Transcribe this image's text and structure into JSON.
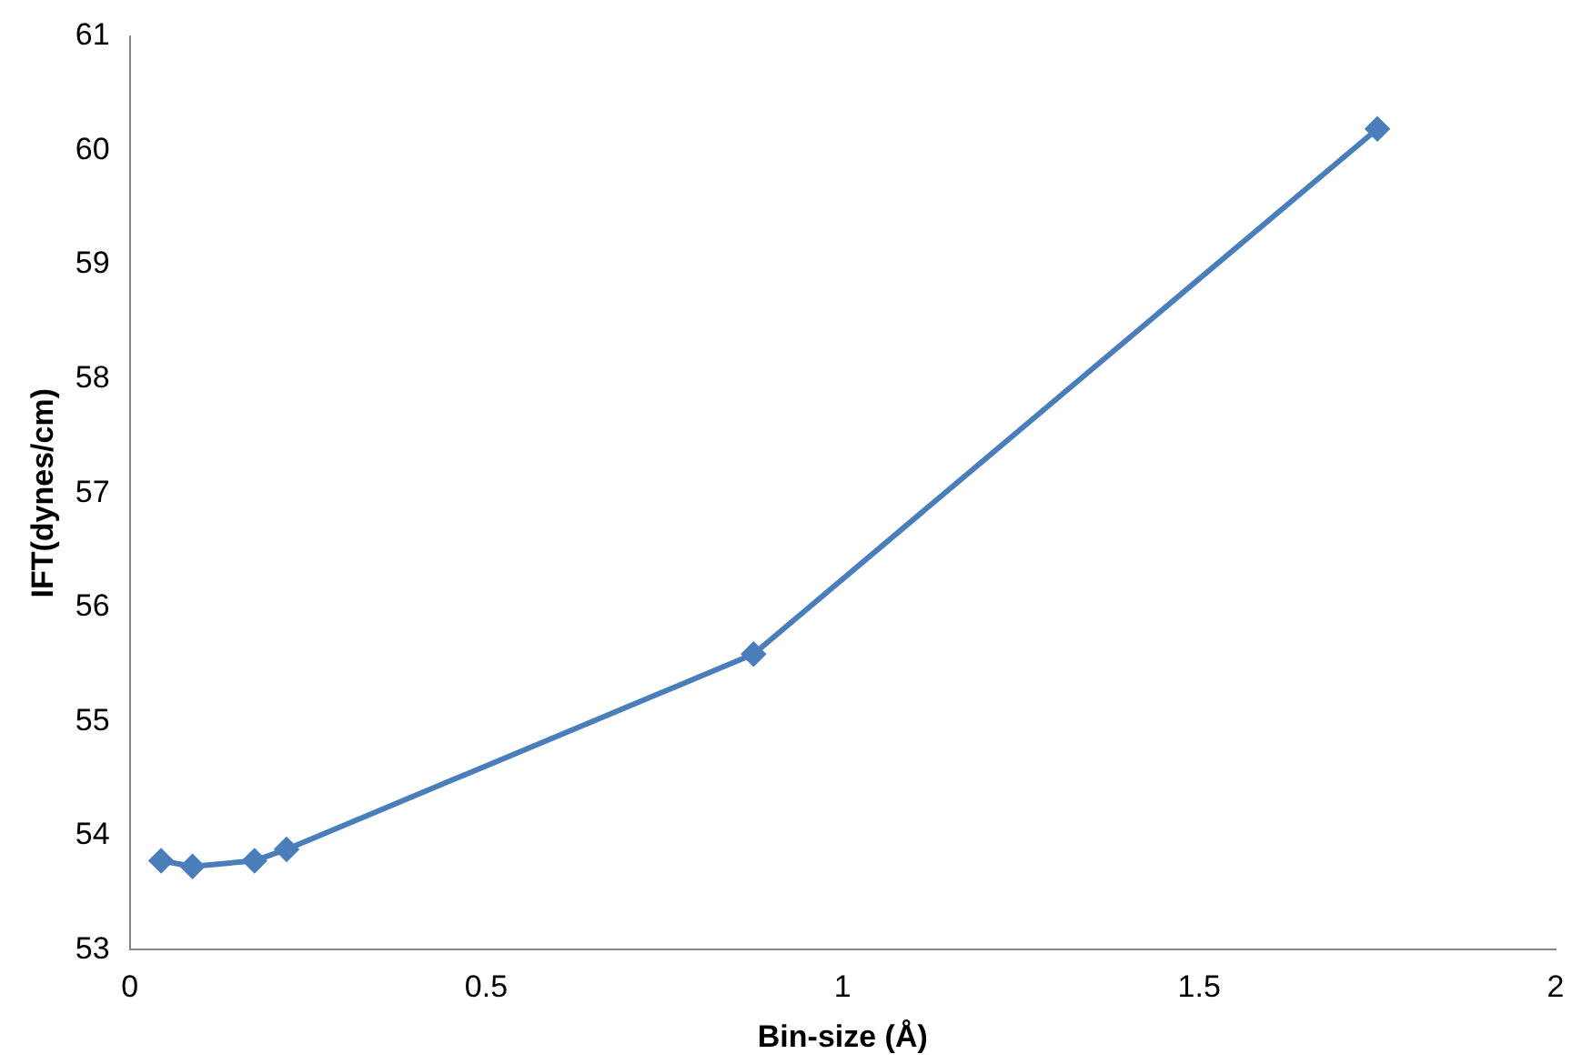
{
  "chart_data": {
    "type": "line",
    "xlabel": "Bin-size (Å)",
    "ylabel": "IFT(dynes/cm)",
    "x": [
      0.044,
      0.088,
      0.175,
      0.22,
      0.875,
      1.75
    ],
    "series": [
      {
        "color": "#4a7ebb",
        "values": [
          53.78,
          53.73,
          53.78,
          53.88,
          55.59,
          60.19
        ]
      }
    ],
    "xlim": [
      0,
      2
    ],
    "xticks": [
      0,
      0.5,
      1,
      1.5,
      2
    ],
    "ylim": [
      53,
      61
    ],
    "yticks": [
      53,
      54,
      55,
      56,
      57,
      58,
      59,
      60,
      61
    ],
    "grid": false,
    "legend": false,
    "marker": "diamond",
    "line_style": "solid"
  }
}
